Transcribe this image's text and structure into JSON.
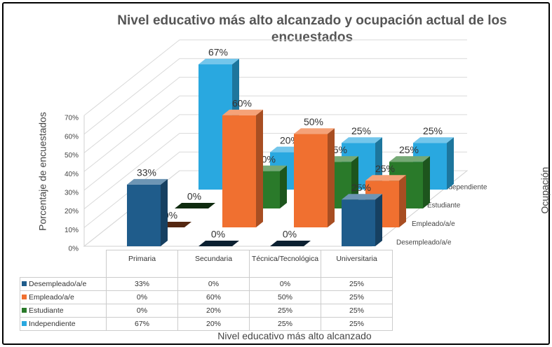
{
  "chart_data": {
    "type": "bar3d",
    "title": "Nivel educativo más alto alcanzado y ocupación actual de los encuestados",
    "x_label": "Nivel educativo más alto alcanzado",
    "y_label": "Porcentaje de encuestados",
    "z_label": "Ocupación",
    "categories": [
      "Primaria",
      "Secundaria",
      "Técnica/Tecnológica",
      "Universitaria"
    ],
    "series": [
      {
        "name": "Desempleado/a/e",
        "color": "#1f5c8b",
        "values": [
          33,
          0,
          0,
          25
        ],
        "value_labels": [
          "33%",
          "0%",
          "0%",
          "25%"
        ]
      },
      {
        "name": "Empleado/a/e",
        "color": "#f07030",
        "values": [
          0,
          60,
          50,
          25
        ],
        "value_labels": [
          "0%",
          "60%",
          "50%",
          "25%"
        ]
      },
      {
        "name": "Estudiante",
        "color": "#2a7a2a",
        "values": [
          0,
          20,
          25,
          25
        ],
        "value_labels": [
          "0%",
          "20%",
          "25%",
          "25%"
        ]
      },
      {
        "name": "Independiente",
        "color": "#29a8e0",
        "values": [
          67,
          20,
          25,
          25
        ],
        "value_labels": [
          "67%",
          "20%",
          "25%",
          "25%"
        ]
      }
    ],
    "ylim": [
      0,
      70
    ],
    "yticks": [
      {
        "value": 0,
        "label": "0%"
      },
      {
        "value": 10,
        "label": "10%"
      },
      {
        "value": 20,
        "label": "20%"
      },
      {
        "value": 30,
        "label": "30%"
      },
      {
        "value": 40,
        "label": "40%"
      },
      {
        "value": 50,
        "label": "50%"
      },
      {
        "value": 60,
        "label": "60%"
      },
      {
        "value": 70,
        "label": "70%"
      }
    ],
    "grid": true,
    "data_table": true
  }
}
